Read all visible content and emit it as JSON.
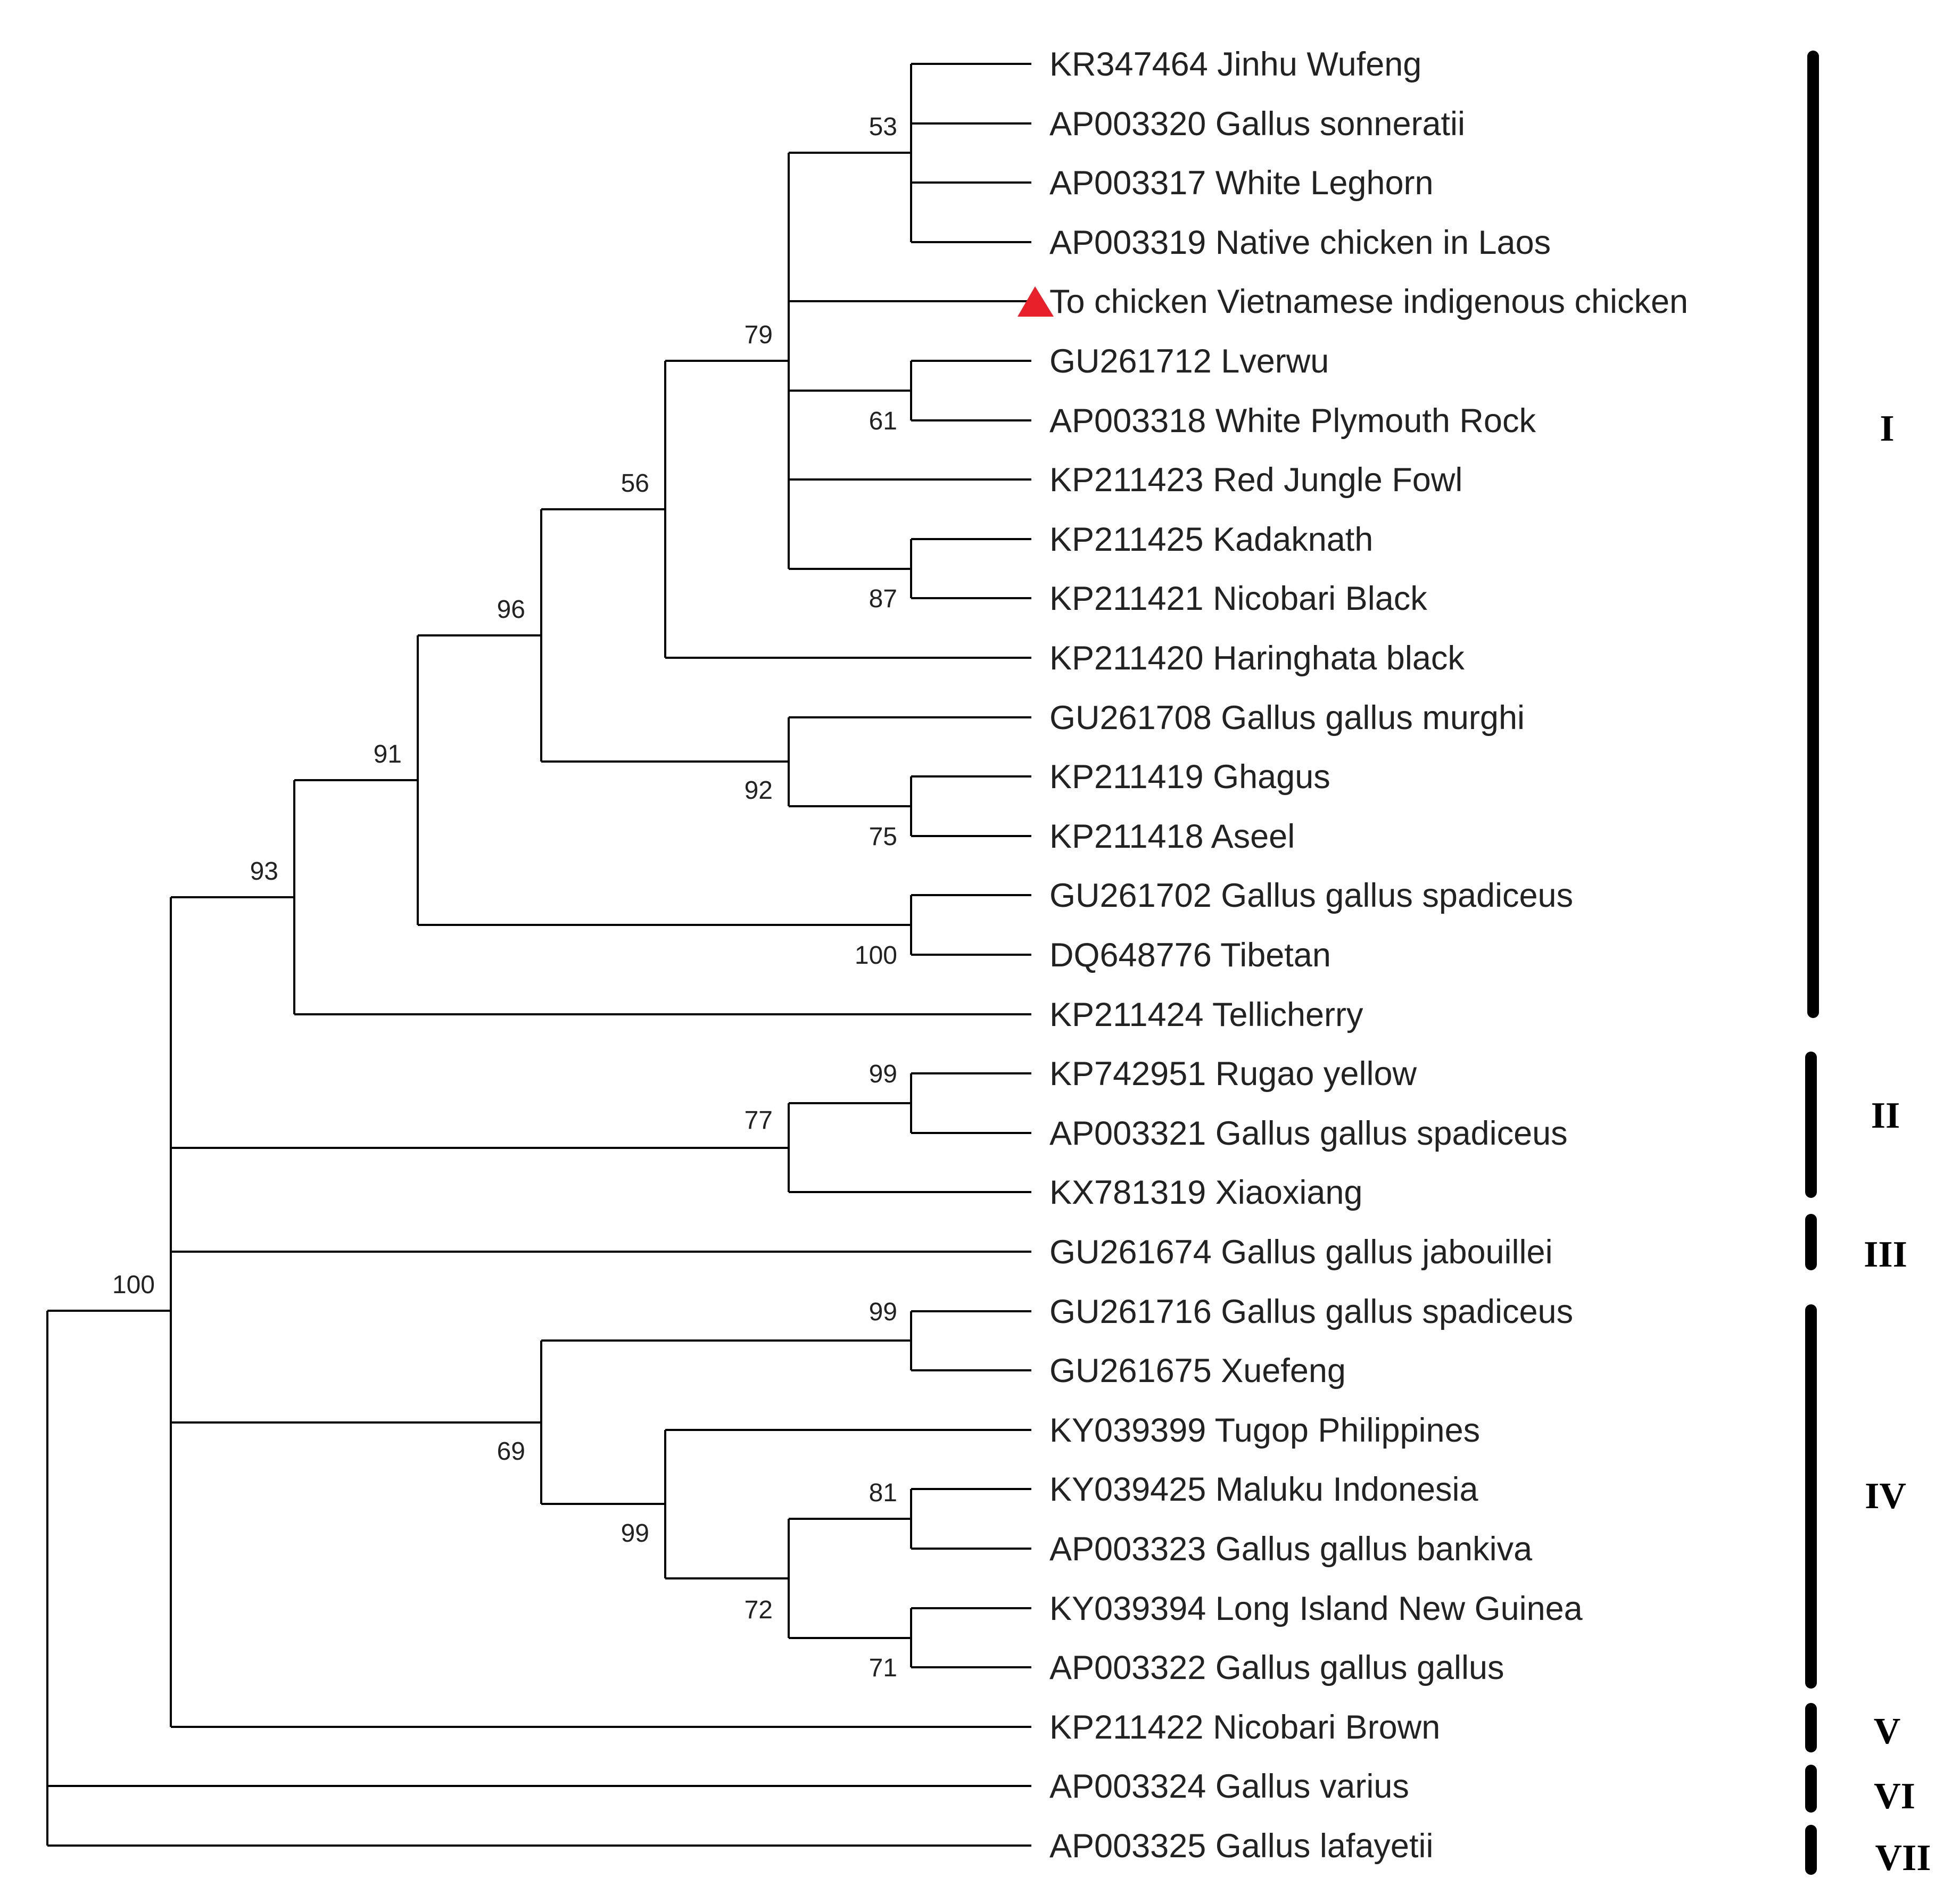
{
  "figure": {
    "marker_color": "#e8202a",
    "taxa": [
      "KR347464 Jinhu Wufeng",
      "AP003320 Gallus sonneratii",
      "AP003317 White Leghorn",
      "AP003319 Native chicken in Laos",
      "To chicken Vietnamese indigenous chicken",
      "GU261712 Lverwu",
      "AP003318 White Plymouth Rock",
      "KP211423 Red Jungle Fowl",
      "KP211425 Kadaknath",
      "KP211421 Nicobari Black",
      "KP211420 Haringhata black",
      "GU261708 Gallus gallus murghi",
      "KP211419 Ghagus",
      "KP211418 Aseel",
      "GU261702 Gallus gallus spadiceus",
      "DQ648776 Tibetan",
      "KP211424 Tellicherry",
      "KP742951 Rugao yellow",
      "AP003321 Gallus gallus spadiceus",
      "KX781319 Xiaoxiang",
      "GU261674 Gallus gallus jabouillei",
      "GU261716 Gallus gallus spadiceus",
      "GU261675 Xuefeng",
      "KY039399 Tugop Philippines",
      "KY039425 Maluku Indonesia",
      "AP003323 Gallus gallus bankiva",
      "KY039394 Long Island New Guinea",
      "AP003322 Gallus gallus gallus",
      "KP211422 Nicobari Brown",
      "AP003324 Gallus varius",
      "AP003325 Gallus lafayetii"
    ],
    "bootstrap": [
      "53",
      "79",
      "61",
      "87",
      "56",
      "96",
      "92",
      "75",
      "91",
      "100",
      "93",
      "99",
      "77",
      "100",
      "99",
      "69",
      "81",
      "99",
      "72",
      "71"
    ],
    "clades": [
      "I",
      "II",
      "III",
      "IV",
      "V",
      "VI",
      "VII"
    ]
  }
}
